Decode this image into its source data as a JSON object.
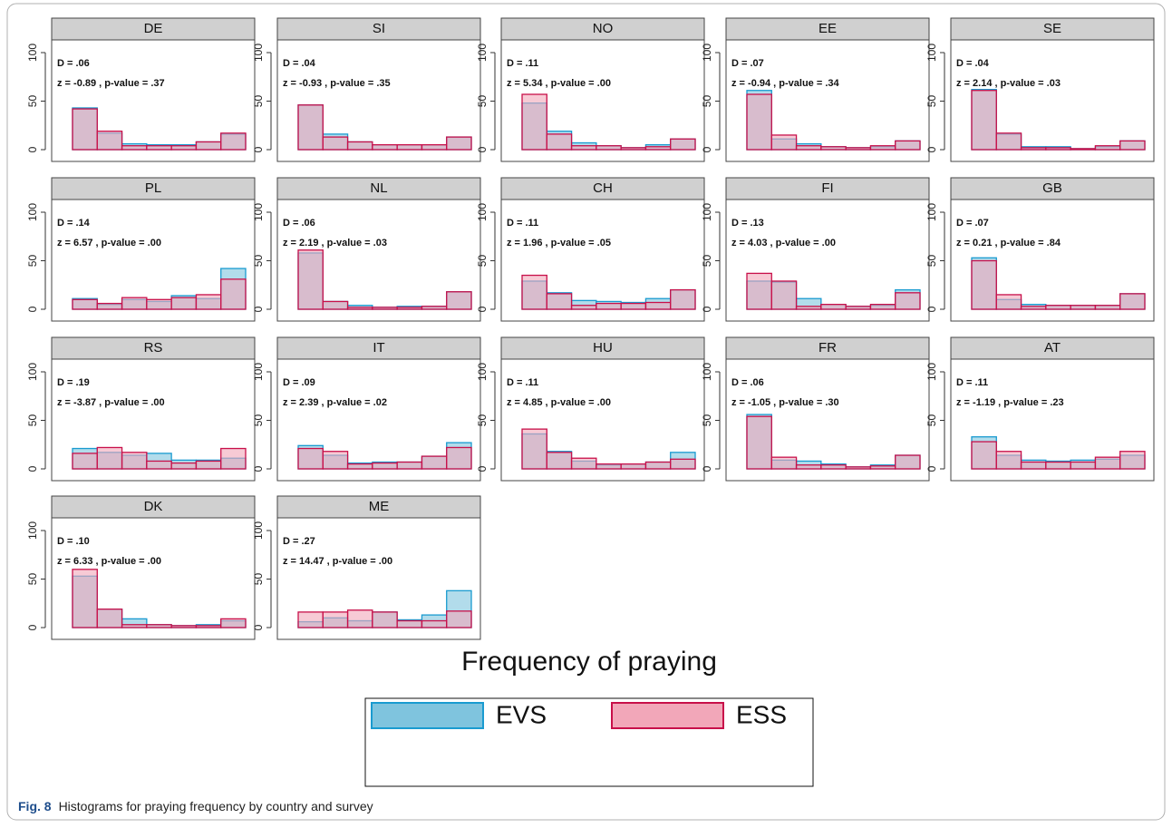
{
  "legend": {
    "title": "Frequency of praying",
    "series": [
      {
        "name": "EVS",
        "color": "#7fc4de",
        "edge": "#1a9bd0"
      },
      {
        "name": "ESS",
        "color": "#f2a7b9",
        "edge": "#c8104a"
      }
    ]
  },
  "caption": {
    "label": "Fig. 8",
    "text": "Histograms for praying frequency by country and survey"
  },
  "chart_data": [
    {
      "type": "bar",
      "title": "DE",
      "annotations": [
        "D = .06",
        "z = -0.89 , p-value = .37"
      ],
      "categories": [
        null,
        null,
        null,
        null,
        null,
        null,
        null
      ],
      "series": [
        {
          "values": [
            43,
            17,
            6,
            5,
            5,
            8,
            16
          ]
        },
        {
          "values": [
            42,
            19,
            4,
            4,
            4,
            8,
            17
          ]
        }
      ],
      "ylim": [
        0,
        100
      ],
      "yticks": [
        0,
        50,
        100
      ]
    },
    {
      "type": "bar",
      "title": "SI",
      "annotations": [
        "D = .04",
        "z = -0.93 , p-value = .35"
      ],
      "categories": [
        null,
        null,
        null,
        null,
        null,
        null,
        null
      ],
      "series": [
        {
          "values": [
            46,
            16,
            8,
            5,
            5,
            5,
            13
          ]
        },
        {
          "values": [
            46,
            13,
            8,
            5,
            5,
            5,
            13
          ]
        }
      ],
      "ylim": [
        0,
        100
      ],
      "yticks": [
        0,
        50,
        100
      ]
    },
    {
      "type": "bar",
      "title": "NO",
      "annotations": [
        "D = .11",
        "z = 5.34 , p-value = .00"
      ],
      "categories": [
        null,
        null,
        null,
        null,
        null,
        null,
        null
      ],
      "series": [
        {
          "values": [
            48,
            19,
            7,
            4,
            2,
            5,
            11
          ]
        },
        {
          "values": [
            57,
            16,
            4,
            4,
            2,
            3,
            11
          ]
        }
      ],
      "ylim": [
        0,
        100
      ],
      "yticks": [
        0,
        50,
        100
      ]
    },
    {
      "type": "bar",
      "title": "EE",
      "annotations": [
        "D = .07",
        "z = -0.94 , p-value = .34"
      ],
      "categories": [
        null,
        null,
        null,
        null,
        null,
        null,
        null
      ],
      "series": [
        {
          "values": [
            61,
            11,
            6,
            3,
            2,
            3,
            9
          ]
        },
        {
          "values": [
            57,
            15,
            4,
            3,
            2,
            4,
            9
          ]
        }
      ],
      "ylim": [
        0,
        100
      ],
      "yticks": [
        0,
        50,
        100
      ]
    },
    {
      "type": "bar",
      "title": "SE",
      "annotations": [
        "D = .04",
        "z = 2.14 , p-value = .03"
      ],
      "categories": [
        null,
        null,
        null,
        null,
        null,
        null,
        null
      ],
      "series": [
        {
          "values": [
            62,
            16,
            3,
            3,
            1,
            3,
            9
          ]
        },
        {
          "values": [
            61,
            17,
            2,
            2,
            1,
            4,
            9
          ]
        }
      ],
      "ylim": [
        0,
        100
      ],
      "yticks": [
        0,
        50,
        100
      ]
    },
    {
      "type": "bar",
      "title": "PL",
      "annotations": [
        "D = .14",
        "z = 6.57 , p-value = .00"
      ],
      "categories": [
        null,
        null,
        null,
        null,
        null,
        null,
        null
      ],
      "series": [
        {
          "values": [
            11,
            5,
            10,
            8,
            14,
            11,
            42
          ]
        },
        {
          "values": [
            10,
            6,
            12,
            10,
            12,
            15,
            31
          ]
        }
      ],
      "ylim": [
        0,
        100
      ],
      "yticks": [
        0,
        50,
        100
      ]
    },
    {
      "type": "bar",
      "title": "NL",
      "annotations": [
        "D = .06",
        "z = 2.19 , p-value = .03"
      ],
      "categories": [
        null,
        null,
        null,
        null,
        null,
        null,
        null
      ],
      "series": [
        {
          "values": [
            58,
            8,
            4,
            2,
            3,
            3,
            18
          ]
        },
        {
          "values": [
            61,
            8,
            2,
            2,
            2,
            3,
            18
          ]
        }
      ],
      "ylim": [
        0,
        100
      ],
      "yticks": [
        0,
        50,
        100
      ]
    },
    {
      "type": "bar",
      "title": "CH",
      "annotations": [
        "D = .11",
        "z = 1.96 , p-value = .05"
      ],
      "categories": [
        null,
        null,
        null,
        null,
        null,
        null,
        null
      ],
      "series": [
        {
          "values": [
            29,
            17,
            9,
            8,
            7,
            11,
            20
          ]
        },
        {
          "values": [
            35,
            16,
            4,
            6,
            6,
            7,
            20
          ]
        }
      ],
      "ylim": [
        0,
        100
      ],
      "yticks": [
        0,
        50,
        100
      ]
    },
    {
      "type": "bar",
      "title": "FI",
      "annotations": [
        "D = .13",
        "z = 4.03 , p-value = .00"
      ],
      "categories": [
        null,
        null,
        null,
        null,
        null,
        null,
        null
      ],
      "series": [
        {
          "values": [
            29,
            28,
            11,
            5,
            3,
            4,
            20
          ]
        },
        {
          "values": [
            37,
            29,
            3,
            5,
            3,
            5,
            17
          ]
        }
      ],
      "ylim": [
        0,
        100
      ],
      "yticks": [
        0,
        50,
        100
      ]
    },
    {
      "type": "bar",
      "title": "GB",
      "annotations": [
        "D = .07",
        "z = 0.21 , p-value = .84"
      ],
      "categories": [
        null,
        null,
        null,
        null,
        null,
        null,
        null
      ],
      "series": [
        {
          "values": [
            53,
            10,
            5,
            4,
            4,
            4,
            16
          ]
        },
        {
          "values": [
            50,
            15,
            3,
            4,
            4,
            4,
            16
          ]
        }
      ],
      "ylim": [
        0,
        100
      ],
      "yticks": [
        0,
        50,
        100
      ]
    },
    {
      "type": "bar",
      "title": "RS",
      "annotations": [
        "D = .19",
        "z = -3.87 , p-value = .00"
      ],
      "categories": [
        null,
        null,
        null,
        null,
        null,
        null,
        null
      ],
      "series": [
        {
          "values": [
            21,
            17,
            14,
            16,
            9,
            9,
            11
          ]
        },
        {
          "values": [
            16,
            22,
            17,
            8,
            6,
            8,
            21
          ]
        }
      ],
      "ylim": [
        0,
        100
      ],
      "yticks": [
        0,
        50,
        100
      ]
    },
    {
      "type": "bar",
      "title": "IT",
      "annotations": [
        "D = .09",
        "z = 2.39 , p-value = .02"
      ],
      "categories": [
        null,
        null,
        null,
        null,
        null,
        null,
        null
      ],
      "series": [
        {
          "values": [
            24,
            14,
            6,
            7,
            7,
            13,
            27
          ]
        },
        {
          "values": [
            21,
            18,
            5,
            6,
            7,
            13,
            22
          ]
        }
      ],
      "ylim": [
        0,
        100
      ],
      "yticks": [
        0,
        50,
        100
      ]
    },
    {
      "type": "bar",
      "title": "HU",
      "annotations": [
        "D = .11",
        "z = 4.85 , p-value = .00"
      ],
      "categories": [
        null,
        null,
        null,
        null,
        null,
        null,
        null
      ],
      "series": [
        {
          "values": [
            36,
            18,
            8,
            4,
            5,
            7,
            17
          ]
        },
        {
          "values": [
            41,
            17,
            11,
            5,
            5,
            7,
            10
          ]
        }
      ],
      "ylim": [
        0,
        100
      ],
      "yticks": [
        0,
        50,
        100
      ]
    },
    {
      "type": "bar",
      "title": "FR",
      "annotations": [
        "D = .06",
        "z = -1.05 , p-value = .30"
      ],
      "categories": [
        null,
        null,
        null,
        null,
        null,
        null,
        null
      ],
      "series": [
        {
          "values": [
            56,
            9,
            8,
            5,
            2,
            4,
            14
          ]
        },
        {
          "values": [
            54,
            12,
            4,
            4,
            2,
            3,
            14
          ]
        }
      ],
      "ylim": [
        0,
        100
      ],
      "yticks": [
        0,
        50,
        100
      ]
    },
    {
      "type": "bar",
      "title": "AT",
      "annotations": [
        "D = .11",
        "z = -1.19 , p-value = .23"
      ],
      "categories": [
        null,
        null,
        null,
        null,
        null,
        null,
        null
      ],
      "series": [
        {
          "values": [
            33,
            14,
            9,
            8,
            9,
            10,
            14
          ]
        },
        {
          "values": [
            28,
            18,
            7,
            7,
            7,
            12,
            18
          ]
        }
      ],
      "ylim": [
        0,
        100
      ],
      "yticks": [
        0,
        50,
        100
      ]
    },
    {
      "type": "bar",
      "title": "DK",
      "annotations": [
        "D = .10",
        "z = 6.33 , p-value = .00"
      ],
      "categories": [
        null,
        null,
        null,
        null,
        null,
        null,
        null
      ],
      "series": [
        {
          "values": [
            53,
            19,
            9,
            3,
            2,
            3,
            7
          ]
        },
        {
          "values": [
            60,
            19,
            3,
            3,
            2,
            2,
            9
          ]
        }
      ],
      "ylim": [
        0,
        100
      ],
      "yticks": [
        0,
        50,
        100
      ]
    },
    {
      "type": "bar",
      "title": "ME",
      "annotations": [
        "D = .27",
        "z = 14.47 , p-value = .00"
      ],
      "categories": [
        null,
        null,
        null,
        null,
        null,
        null,
        null
      ],
      "series": [
        {
          "values": [
            6,
            10,
            7,
            16,
            8,
            13,
            38
          ]
        },
        {
          "values": [
            16,
            16,
            18,
            16,
            7,
            7,
            17
          ]
        }
      ],
      "ylim": [
        0,
        100
      ],
      "yticks": [
        0,
        50,
        100
      ]
    }
  ]
}
